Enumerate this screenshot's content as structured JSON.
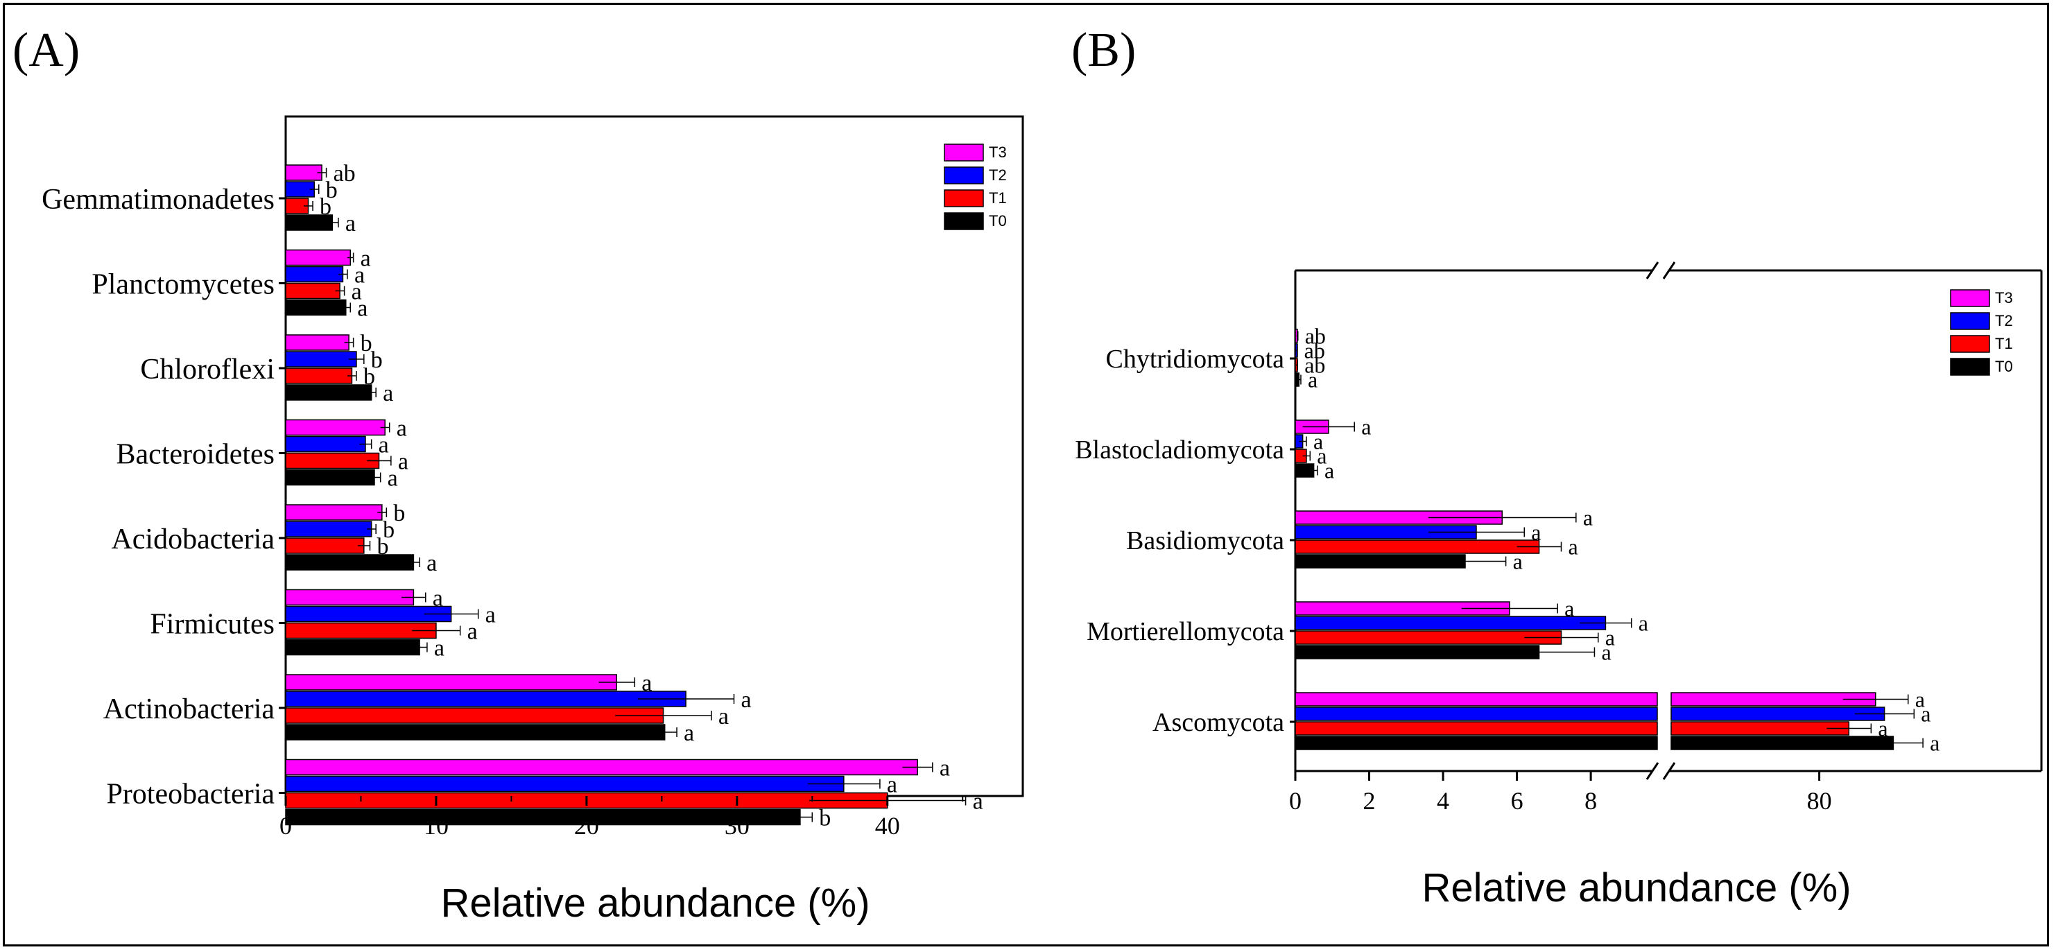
{
  "chart_data": [
    {
      "panel": "(A)",
      "type": "bar",
      "orientation": "horizontal",
      "xlabel": "Relative abundance (%)",
      "xlim": [
        0,
        49
      ],
      "xticks": [
        0,
        10,
        20,
        30,
        40
      ],
      "legend": [
        "T3",
        "T2",
        "T1",
        "T0"
      ],
      "legend_position": "top-right",
      "categories": [
        "Gemmatimonadetes",
        "Planctomycetes",
        "Chloroflexi",
        "Bacteroidetes",
        "Acidobacteria",
        "Firmicutes",
        "Actinobacteria",
        "Proteobacteria"
      ],
      "series": [
        {
          "name": "T3",
          "color": "#ff00ff",
          "values": [
            2.4,
            4.3,
            4.2,
            6.6,
            6.4,
            8.5,
            22.0,
            42.0
          ],
          "errors": [
            0.3,
            0.2,
            0.3,
            0.3,
            0.3,
            0.8,
            1.2,
            1.0
          ],
          "labels": [
            "ab",
            "a",
            "b",
            "a",
            "b",
            "a",
            "a",
            "a"
          ]
        },
        {
          "name": "T2",
          "color": "#0000ff",
          "values": [
            1.9,
            3.8,
            4.7,
            5.3,
            5.7,
            11.0,
            26.6,
            37.1
          ],
          "errors": [
            0.3,
            0.3,
            0.5,
            0.4,
            0.3,
            1.8,
            3.2,
            2.4
          ],
          "labels": [
            "b",
            "a",
            "b",
            "a",
            "b",
            "a",
            "a",
            "a"
          ]
        },
        {
          "name": "T1",
          "color": "#ff0000",
          "values": [
            1.5,
            3.6,
            4.4,
            6.2,
            5.2,
            10.0,
            25.1,
            40.0
          ],
          "errors": [
            0.3,
            0.3,
            0.3,
            0.8,
            0.4,
            1.6,
            3.2,
            5.2
          ],
          "labels": [
            "b",
            "a",
            "b",
            "a",
            "b",
            "a",
            "a",
            "a"
          ]
        },
        {
          "name": "T0",
          "color": "#000000",
          "values": [
            3.1,
            4.0,
            5.7,
            5.9,
            8.5,
            8.9,
            25.2,
            34.2
          ],
          "errors": [
            0.4,
            0.3,
            0.3,
            0.4,
            0.4,
            0.5,
            0.8,
            0.8
          ],
          "labels": [
            "a",
            "a",
            "a",
            "a",
            "a",
            "a",
            "a",
            "b"
          ]
        }
      ]
    },
    {
      "panel": "(B)",
      "type": "bar",
      "orientation": "horizontal",
      "axis_break": true,
      "xlabel": "Relative abundance (%)",
      "xlim_segments": [
        [
          0,
          9.8
        ],
        [
          70,
          95
        ]
      ],
      "xticks": [
        0,
        2,
        4,
        6,
        8,
        80
      ],
      "legend": [
        "T3",
        "T2",
        "T1",
        "T0"
      ],
      "legend_position": "top-right",
      "categories": [
        "Chytridiomycota",
        "Blastocladiomycota",
        "Basidiomycota",
        "Mortierellomycota",
        "Ascomycota"
      ],
      "series": [
        {
          "name": "T3",
          "color": "#ff00ff",
          "values": [
            0.05,
            0.9,
            5.6,
            5.8,
            83.8
          ],
          "errors": [
            0.02,
            0.7,
            2.0,
            1.3,
            2.2
          ],
          "labels": [
            "ab",
            "a",
            "a",
            "a",
            "a"
          ]
        },
        {
          "name": "T2",
          "color": "#0000ff",
          "values": [
            0.03,
            0.2,
            4.9,
            8.4,
            84.4
          ],
          "errors": [
            0.02,
            0.1,
            1.3,
            0.7,
            2.0
          ],
          "labels": [
            "ab",
            "a",
            "a",
            "a",
            "a"
          ]
        },
        {
          "name": "T1",
          "color": "#ff0000",
          "values": [
            0.04,
            0.3,
            6.6,
            7.2,
            82.0
          ],
          "errors": [
            0.02,
            0.1,
            0.6,
            1.0,
            1.5
          ],
          "labels": [
            "ab",
            "a",
            "a",
            "a",
            "a"
          ]
        },
        {
          "name": "T0",
          "color": "#000000",
          "values": [
            0.1,
            0.5,
            4.6,
            6.6,
            85.0
          ],
          "errors": [
            0.05,
            0.1,
            1.1,
            1.5,
            2.0
          ],
          "labels": [
            "a",
            "a",
            "a",
            "a",
            "a"
          ]
        }
      ]
    }
  ]
}
